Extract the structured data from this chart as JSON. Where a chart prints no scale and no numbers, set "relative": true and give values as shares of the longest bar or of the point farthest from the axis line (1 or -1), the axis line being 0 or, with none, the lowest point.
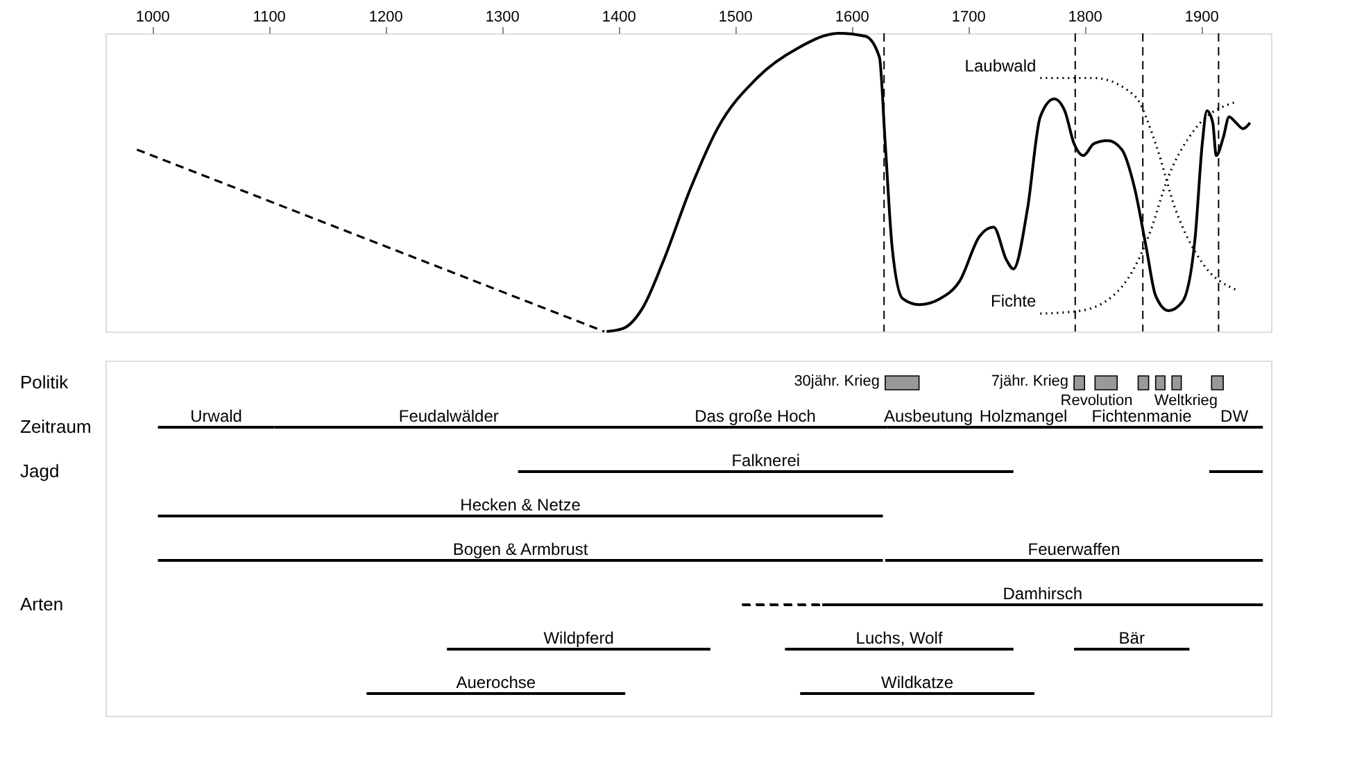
{
  "chart_data": [
    {
      "type": "line",
      "relative": true,
      "xlim": [
        960,
        1960
      ],
      "xticks": [
        1000,
        1100,
        1200,
        1300,
        1400,
        1500,
        1600,
        1700,
        1800,
        1900
      ],
      "grid": false,
      "legend": false,
      "series": [
        {
          "color": "#000000",
          "line_style": "solid",
          "x": [
            1390,
            1404,
            1421,
            1438,
            1462,
            1485,
            1519,
            1554,
            1589,
            1612,
            1624,
            1629,
            1635,
            1644,
            1658,
            1676,
            1693,
            1710,
            1722,
            1733,
            1739,
            1751,
            1762,
            1774,
            1783,
            1791,
            1799,
            1808,
            1820,
            1832,
            1843,
            1853,
            1861,
            1872,
            1884,
            1895,
            1901,
            1905,
            1910,
            1913,
            1919,
            1924,
            1930,
            1936,
            1942
          ],
          "values": [
            0,
            0.01,
            0.08,
            0.23,
            0.48,
            0.68,
            0.85,
            0.95,
            1.0,
            0.99,
            0.92,
            0.63,
            0.28,
            0.11,
            0.09,
            0.11,
            0.17,
            0.32,
            0.35,
            0.24,
            0.21,
            0.41,
            0.72,
            0.78,
            0.74,
            0.63,
            0.59,
            0.63,
            0.64,
            0.61,
            0.48,
            0.28,
            0.12,
            0.07,
            0.1,
            0.32,
            0.63,
            0.74,
            0.7,
            0.59,
            0.65,
            0.72,
            0.7,
            0.68,
            0.7
          ]
        },
        {
          "color": "#000000",
          "line_style": "dashed",
          "x": [
            987,
            1388
          ],
          "values": [
            0.61,
            0.0
          ]
        },
        {
          "name": "Laubwald",
          "color": "#000000",
          "line_style": "dotted",
          "x": [
            1762,
            1808,
            1843,
            1861,
            1878,
            1901,
            1930
          ],
          "values": [
            0.85,
            0.85,
            0.79,
            0.63,
            0.41,
            0.23,
            0.14
          ]
        },
        {
          "name": "Fichte",
          "color": "#000000",
          "line_style": "dotted",
          "x": [
            1762,
            1797,
            1832,
            1855,
            1872,
            1895,
            1930
          ],
          "values": [
            0.06,
            0.07,
            0.15,
            0.32,
            0.52,
            0.68,
            0.77
          ]
        }
      ],
      "ref_lines": [
        {
          "axis": "x",
          "value": 1628,
          "color": "#000000",
          "line_style": "dashed"
        },
        {
          "axis": "x",
          "value": 1792,
          "color": "#000000",
          "line_style": "dashed"
        },
        {
          "axis": "x",
          "value": 1850,
          "color": "#000000",
          "line_style": "dashed"
        },
        {
          "axis": "x",
          "value": 1915,
          "color": "#000000",
          "line_style": "dashed"
        }
      ]
    },
    {
      "type": "bar",
      "orientation": "horizontal",
      "xlim": [
        960,
        1960
      ],
      "tick_labels": "y",
      "legend": false,
      "categories": [
        "Politik",
        "Zeitraum",
        "Jagd",
        null,
        null,
        "Arten",
        null,
        null
      ],
      "annotations": [
        {
          "text": "30jähr. Krieg",
          "x": 1629,
          "y": "Politik"
        },
        {
          "text": "7jähr. Krieg",
          "x": 1791,
          "y": "Politik"
        },
        {
          "text": "Revolution",
          "x": 1846,
          "y": "Politik"
        },
        {
          "text": "Weltkrieg",
          "x": 1919,
          "y": "Politik"
        }
      ],
      "series": [
        {
          "color": "#999999",
          "base": [
            1629,
            null,
            null,
            null,
            null,
            null,
            null,
            null
          ],
          "values": [
            29,
            null,
            null,
            null,
            null,
            null,
            null,
            null
          ]
        },
        {
          "color": "#999999",
          "base": [
            1791,
            null,
            null,
            null,
            null,
            null,
            null,
            null
          ],
          "values": [
            9,
            null,
            null,
            null,
            null,
            null,
            null,
            null
          ]
        },
        {
          "color": "#999999",
          "base": [
            1809,
            null,
            null,
            null,
            null,
            null,
            null,
            null
          ],
          "values": [
            19,
            null,
            null,
            null,
            null,
            null,
            null,
            null
          ]
        },
        {
          "color": "#999999",
          "base": [
            1846,
            null,
            null,
            null,
            null,
            null,
            null,
            null
          ],
          "values": [
            9,
            null,
            null,
            null,
            null,
            null,
            null,
            null
          ]
        },
        {
          "color": "#999999",
          "base": [
            1861,
            null,
            null,
            null,
            null,
            null,
            null,
            null
          ],
          "values": [
            8,
            null,
            null,
            null,
            null,
            null,
            null,
            null
          ]
        },
        {
          "color": "#999999",
          "base": [
            1875,
            null,
            null,
            null,
            null,
            null,
            null,
            null
          ],
          "values": [
            8,
            null,
            null,
            null,
            null,
            null,
            null,
            null
          ]
        },
        {
          "color": "#999999",
          "base": [
            1909,
            null,
            null,
            null,
            null,
            null,
            null,
            null
          ],
          "values": [
            10,
            null,
            null,
            null,
            null,
            null,
            null,
            null
          ]
        },
        {
          "name": "Urwald",
          "line_style": "solid",
          "color": "#000000",
          "base": [
            null,
            1005,
            null,
            null,
            null,
            null,
            null,
            null
          ],
          "values": [
            null,
            100,
            null,
            null,
            null,
            null,
            null,
            null
          ]
        },
        {
          "name": "Feudalwälder",
          "line_style": "solid",
          "color": "#000000",
          "base": [
            null,
            1105,
            null,
            null,
            null,
            null,
            null,
            null
          ],
          "values": [
            null,
            299,
            null,
            null,
            null,
            null,
            null,
            null
          ]
        },
        {
          "name": "Das große Hoch",
          "line_style": "solid",
          "color": "#000000",
          "base": [
            null,
            1404,
            null,
            null,
            null,
            null,
            null,
            null
          ],
          "values": [
            null,
            227,
            null,
            null,
            null,
            null,
            null,
            null
          ]
        },
        {
          "name": "Ausbeutung",
          "line_style": "solid",
          "color": "#000000",
          "base": [
            null,
            1631,
            null,
            null,
            null,
            null,
            null,
            null
          ],
          "values": [
            null,
            70,
            null,
            null,
            null,
            null,
            null,
            null
          ]
        },
        {
          "name": "Holzmangel",
          "line_style": "solid",
          "color": "#000000",
          "base": [
            null,
            1701,
            null,
            null,
            null,
            null,
            null,
            null
          ],
          "values": [
            null,
            93,
            null,
            null,
            null,
            null,
            null,
            null
          ]
        },
        {
          "name": "Fichtenmanie",
          "line_style": "solid",
          "color": "#000000",
          "base": [
            null,
            1794,
            null,
            null,
            null,
            null,
            null,
            null
          ],
          "values": [
            null,
            110,
            null,
            null,
            null,
            null,
            null,
            null
          ]
        },
        {
          "name": "DW",
          "line_style": "solid",
          "color": "#000000",
          "base": [
            null,
            1904,
            null,
            null,
            null,
            null,
            null,
            null
          ],
          "values": [
            null,
            49,
            null,
            null,
            null,
            null,
            null,
            null
          ]
        },
        {
          "name": "Falknerei",
          "line_style": "solid",
          "color": "#000000",
          "base": [
            null,
            null,
            1314,
            null,
            null,
            null,
            null,
            null
          ],
          "values": [
            null,
            null,
            425,
            null,
            null,
            null,
            null,
            null
          ]
        },
        {
          "line_style": "solid",
          "color": "#000000",
          "base": [
            null,
            null,
            1907,
            null,
            null,
            null,
            null,
            null
          ],
          "values": [
            null,
            null,
            46,
            null,
            null,
            null,
            null,
            null
          ]
        },
        {
          "name": "Hecken & Netze",
          "line_style": "solid",
          "color": "#000000",
          "base": [
            null,
            null,
            null,
            1005,
            null,
            null,
            null,
            null
          ],
          "values": [
            null,
            null,
            null,
            622,
            null,
            null,
            null,
            null
          ]
        },
        {
          "name": "Bogen & Armbrust",
          "line_style": "solid",
          "color": "#000000",
          "base": [
            null,
            null,
            null,
            null,
            1005,
            null,
            null,
            null
          ],
          "values": [
            null,
            null,
            null,
            null,
            622,
            null,
            null,
            null
          ]
        },
        {
          "name": "Feuerwaffen",
          "line_style": "solid",
          "color": "#000000",
          "base": [
            null,
            null,
            null,
            null,
            1629,
            null,
            null,
            null
          ],
          "values": [
            null,
            null,
            null,
            null,
            324,
            null,
            null,
            null
          ]
        },
        {
          "line_style": "dashed",
          "color": "#000000",
          "base": [
            null,
            null,
            null,
            null,
            null,
            1506,
            null,
            null
          ],
          "values": [
            null,
            null,
            null,
            null,
            null,
            69,
            null,
            null
          ]
        },
        {
          "name": "Damhirsch",
          "line_style": "solid",
          "color": "#000000",
          "base": [
            null,
            null,
            null,
            null,
            null,
            1575,
            null,
            null
          ],
          "values": [
            null,
            null,
            null,
            null,
            null,
            378,
            null,
            null
          ]
        },
        {
          "name": "Wildpferd",
          "line_style": "solid",
          "color": "#000000",
          "base": [
            null,
            null,
            null,
            null,
            null,
            null,
            1253,
            null
          ],
          "values": [
            null,
            null,
            null,
            null,
            null,
            null,
            226,
            null
          ]
        },
        {
          "name": "Luchs, Wolf",
          "line_style": "solid",
          "color": "#000000",
          "base": [
            null,
            null,
            null,
            null,
            null,
            null,
            1543,
            null
          ],
          "values": [
            null,
            null,
            null,
            null,
            null,
            null,
            196,
            null
          ]
        },
        {
          "name": "Bär",
          "line_style": "solid",
          "color": "#000000",
          "base": [
            null,
            null,
            null,
            null,
            null,
            null,
            1791,
            null
          ],
          "values": [
            null,
            null,
            null,
            null,
            null,
            null,
            99,
            null
          ]
        },
        {
          "name": "Auerochse",
          "line_style": "solid",
          "color": "#000000",
          "base": [
            null,
            null,
            null,
            null,
            null,
            null,
            null,
            1184
          ],
          "values": [
            null,
            null,
            null,
            null,
            null,
            null,
            null,
            222
          ]
        },
        {
          "name": "Wildkatze",
          "line_style": "solid",
          "color": "#000000",
          "base": [
            null,
            null,
            null,
            null,
            null,
            null,
            null,
            1556
          ],
          "values": [
            null,
            null,
            null,
            null,
            null,
            null,
            null,
            201
          ]
        }
      ]
    }
  ]
}
